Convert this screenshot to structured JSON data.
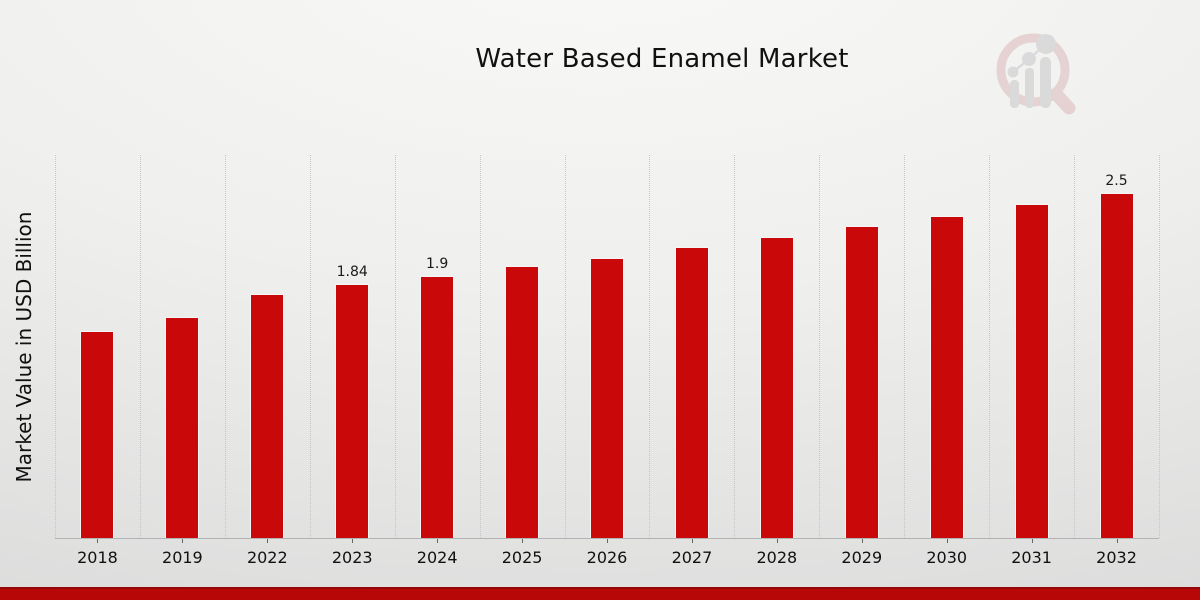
{
  "header": {
    "title": "Water Based Enamel Market"
  },
  "logo": {
    "icon": "magnifier-bar-chart-logo",
    "ring_color": "#dcb8bc",
    "bars_color": "#c8c8cb"
  },
  "chart_data": {
    "type": "bar",
    "title": "Water Based Enamel Market",
    "xlabel": "",
    "ylabel": "Market Value in USD Billion",
    "categories": [
      "2018",
      "2019",
      "2022",
      "2023",
      "2024",
      "2025",
      "2026",
      "2027",
      "2028",
      "2029",
      "2030",
      "2031",
      "2032"
    ],
    "values": [
      1.5,
      1.6,
      1.77,
      1.84,
      1.9,
      1.97,
      2.03,
      2.11,
      2.18,
      2.26,
      2.33,
      2.42,
      2.5
    ],
    "value_labels": [
      "",
      "",
      "",
      "1.84",
      "1.9",
      "",
      "",
      "",
      "",
      "",
      "",
      "",
      "2.5"
    ],
    "unit": "USD Billion",
    "bar_color": "#c90909",
    "bar_edge_color": "#f5f5f5",
    "ylim": [
      0,
      2.775
    ],
    "grid": "vertical dotted lines between categories",
    "legend": "none",
    "axis_color": "#b3b3b3"
  },
  "footer": {
    "band_color": "#b80707",
    "band_edge_color": "#940707"
  }
}
